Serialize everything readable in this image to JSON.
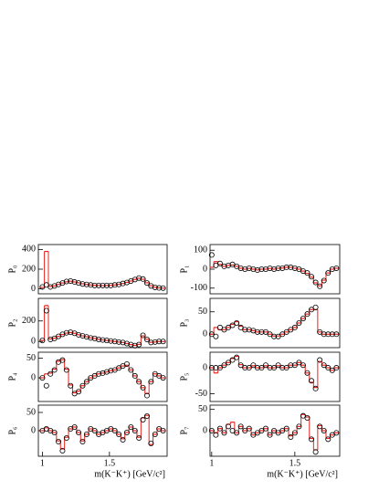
{
  "chart_data": [
    {
      "type": "step-fit",
      "ylabel": "P₀",
      "xlim": [
        0.97,
        1.93
      ],
      "ylim": [
        -50,
        450
      ],
      "yticks": [
        0,
        200,
        400
      ],
      "x": [
        1.0,
        1.03,
        1.06,
        1.09,
        1.12,
        1.15,
        1.18,
        1.21,
        1.24,
        1.27,
        1.3,
        1.33,
        1.36,
        1.39,
        1.42,
        1.45,
        1.48,
        1.51,
        1.54,
        1.57,
        1.6,
        1.63,
        1.66,
        1.69,
        1.72,
        1.75,
        1.78,
        1.81,
        1.84,
        1.87,
        1.9
      ],
      "series": [
        {
          "color": "#000000",
          "values": [
            20,
            40,
            20,
            30,
            45,
            60,
            75,
            80,
            70,
            60,
            50,
            45,
            40,
            35,
            35,
            35,
            35,
            35,
            40,
            45,
            55,
            65,
            80,
            95,
            110,
            100,
            60,
            30,
            15,
            10,
            8
          ]
        },
        {
          "color": "#e8231d",
          "values": [
            15,
            380,
            25,
            30,
            45,
            60,
            72,
            78,
            70,
            62,
            52,
            45,
            40,
            36,
            35,
            34,
            35,
            36,
            40,
            46,
            55,
            66,
            80,
            96,
            108,
            98,
            62,
            32,
            16,
            10,
            8
          ]
        }
      ]
    },
    {
      "type": "step-fit",
      "ylabel": "P₁",
      "xlim": [
        0.99,
        1.77
      ],
      "ylim": [
        -130,
        130
      ],
      "yticks": [
        -100,
        0,
        100
      ],
      "x": [
        1.0,
        1.025,
        1.05,
        1.075,
        1.1,
        1.125,
        1.15,
        1.175,
        1.2,
        1.225,
        1.25,
        1.275,
        1.3,
        1.325,
        1.35,
        1.375,
        1.4,
        1.425,
        1.45,
        1.475,
        1.5,
        1.525,
        1.55,
        1.575,
        1.6,
        1.625,
        1.65,
        1.675,
        1.7,
        1.725,
        1.75
      ],
      "series": [
        {
          "color": "#000000",
          "values": [
            75,
            20,
            30,
            15,
            20,
            25,
            15,
            5,
            0,
            5,
            0,
            -5,
            0,
            0,
            5,
            0,
            5,
            5,
            10,
            10,
            5,
            0,
            -10,
            -20,
            -40,
            -70,
            -90,
            -60,
            -20,
            0,
            5
          ]
        },
        {
          "color": "#e8231d",
          "values": [
            10,
            40,
            25,
            15,
            20,
            22,
            15,
            5,
            0,
            4,
            0,
            -4,
            0,
            0,
            4,
            0,
            5,
            6,
            10,
            10,
            5,
            0,
            -10,
            -22,
            -42,
            -72,
            -88,
            -58,
            -20,
            0,
            5
          ]
        }
      ]
    },
    {
      "type": "step-fit",
      "ylabel": "P₂",
      "xlim": [
        0.97,
        1.93
      ],
      "ylim": [
        -60,
        420
      ],
      "yticks": [
        0,
        200
      ],
      "x": [
        1.0,
        1.03,
        1.06,
        1.09,
        1.12,
        1.15,
        1.18,
        1.21,
        1.24,
        1.27,
        1.3,
        1.33,
        1.36,
        1.39,
        1.42,
        1.45,
        1.48,
        1.51,
        1.54,
        1.57,
        1.6,
        1.63,
        1.66,
        1.69,
        1.72,
        1.75,
        1.78,
        1.81,
        1.84,
        1.87,
        1.9
      ],
      "series": [
        {
          "color": "#000000",
          "values": [
            10,
            300,
            20,
            30,
            50,
            70,
            85,
            90,
            80,
            65,
            55,
            45,
            35,
            30,
            20,
            15,
            10,
            5,
            0,
            -5,
            -10,
            -20,
            -30,
            -40,
            -30,
            60,
            20,
            -10,
            -5,
            0,
            0
          ]
        },
        {
          "color": "#e8231d",
          "values": [
            10,
            350,
            25,
            32,
            50,
            68,
            82,
            88,
            80,
            66,
            55,
            46,
            36,
            30,
            21,
            15,
            10,
            5,
            0,
            -5,
            -10,
            -20,
            -30,
            -38,
            -28,
            55,
            22,
            -8,
            -5,
            0,
            0
          ]
        }
      ]
    },
    {
      "type": "step-fit",
      "ylabel": "P₃",
      "xlim": [
        0.99,
        1.77
      ],
      "ylim": [
        -30,
        80
      ],
      "yticks": [
        0,
        50
      ],
      "x": [
        1.0,
        1.025,
        1.05,
        1.075,
        1.1,
        1.125,
        1.15,
        1.175,
        1.2,
        1.225,
        1.25,
        1.275,
        1.3,
        1.325,
        1.35,
        1.375,
        1.4,
        1.425,
        1.45,
        1.475,
        1.5,
        1.525,
        1.55,
        1.575,
        1.6,
        1.625,
        1.65,
        1.675,
        1.7,
        1.725,
        1.75
      ],
      "series": [
        {
          "color": "#000000",
          "values": [
            0,
            -5,
            15,
            10,
            15,
            20,
            25,
            15,
            10,
            10,
            8,
            5,
            5,
            5,
            0,
            -5,
            -5,
            0,
            5,
            10,
            15,
            25,
            35,
            45,
            55,
            60,
            5,
            0,
            0,
            0,
            0
          ]
        },
        {
          "color": "#e8231d",
          "values": [
            0,
            15,
            10,
            10,
            15,
            22,
            28,
            18,
            10,
            10,
            8,
            5,
            5,
            5,
            0,
            -4,
            -4,
            0,
            5,
            10,
            15,
            25,
            35,
            45,
            55,
            55,
            5,
            0,
            0,
            0,
            0
          ]
        }
      ]
    },
    {
      "type": "step-fit",
      "ylabel": "P₄",
      "xlim": [
        0.97,
        1.93
      ],
      "ylim": [
        -60,
        65
      ],
      "yticks": [
        0,
        50
      ],
      "x": [
        1.0,
        1.03,
        1.06,
        1.09,
        1.12,
        1.15,
        1.18,
        1.21,
        1.24,
        1.27,
        1.3,
        1.33,
        1.36,
        1.39,
        1.42,
        1.45,
        1.48,
        1.51,
        1.54,
        1.57,
        1.6,
        1.63,
        1.66,
        1.69,
        1.72,
        1.75,
        1.78,
        1.81,
        1.84,
        1.87,
        1.9
      ],
      "series": [
        {
          "color": "#000000",
          "values": [
            0,
            -20,
            10,
            20,
            40,
            45,
            20,
            -20,
            -40,
            -35,
            -20,
            -10,
            0,
            5,
            10,
            12,
            15,
            18,
            20,
            25,
            30,
            35,
            20,
            5,
            -10,
            -25,
            -45,
            -10,
            10,
            5,
            0
          ]
        },
        {
          "color": "#e8231d",
          "values": [
            0,
            10,
            12,
            22,
            42,
            46,
            22,
            -18,
            -38,
            -34,
            -20,
            -10,
            0,
            5,
            10,
            12,
            15,
            18,
            20,
            25,
            30,
            32,
            20,
            5,
            -10,
            -25,
            -40,
            -10,
            10,
            5,
            0
          ]
        }
      ]
    },
    {
      "type": "step-fit",
      "ylabel": "P₅",
      "xlim": [
        0.99,
        1.77
      ],
      "ylim": [
        -65,
        30
      ],
      "yticks": [
        -50,
        0
      ],
      "x": [
        1.0,
        1.025,
        1.05,
        1.075,
        1.1,
        1.125,
        1.15,
        1.175,
        1.2,
        1.225,
        1.25,
        1.275,
        1.3,
        1.325,
        1.35,
        1.375,
        1.4,
        1.425,
        1.45,
        1.475,
        1.5,
        1.525,
        1.55,
        1.575,
        1.6,
        1.625,
        1.65,
        1.675,
        1.7,
        1.725,
        1.75
      ],
      "series": [
        {
          "color": "#000000",
          "values": [
            0,
            0,
            0,
            5,
            10,
            15,
            20,
            5,
            0,
            0,
            5,
            0,
            0,
            5,
            0,
            0,
            5,
            0,
            0,
            5,
            5,
            10,
            5,
            -10,
            -25,
            -40,
            15,
            5,
            0,
            -5,
            0
          ]
        },
        {
          "color": "#e8231d",
          "values": [
            0,
            -10,
            0,
            5,
            10,
            18,
            22,
            6,
            0,
            0,
            4,
            0,
            0,
            4,
            0,
            0,
            4,
            0,
            0,
            5,
            5,
            10,
            5,
            -10,
            -28,
            -38,
            12,
            5,
            0,
            -5,
            0
          ]
        }
      ]
    },
    {
      "type": "step-fit",
      "ylabel": "P₆",
      "xlim": [
        0.97,
        1.93
      ],
      "ylim": [
        -70,
        70
      ],
      "yticks": [
        0,
        50
      ],
      "x": [
        1.0,
        1.03,
        1.06,
        1.09,
        1.12,
        1.15,
        1.18,
        1.21,
        1.24,
        1.27,
        1.3,
        1.33,
        1.36,
        1.39,
        1.42,
        1.45,
        1.48,
        1.51,
        1.54,
        1.57,
        1.6,
        1.63,
        1.66,
        1.69,
        1.72,
        1.75,
        1.78,
        1.81,
        1.84,
        1.87,
        1.9
      ],
      "series": [
        {
          "color": "#000000",
          "values": [
            0,
            5,
            0,
            -5,
            -30,
            -55,
            -20,
            5,
            10,
            -5,
            -30,
            -10,
            5,
            0,
            -10,
            -5,
            0,
            5,
            0,
            -10,
            -25,
            -5,
            10,
            0,
            -20,
            30,
            40,
            -35,
            -10,
            5,
            0
          ]
        },
        {
          "color": "#e8231d",
          "values": [
            0,
            8,
            0,
            -5,
            -28,
            -50,
            -18,
            5,
            10,
            -5,
            -28,
            -10,
            5,
            0,
            -10,
            -5,
            0,
            5,
            0,
            -10,
            -22,
            -5,
            10,
            0,
            -18,
            35,
            42,
            -38,
            -10,
            5,
            0
          ]
        }
      ]
    },
    {
      "type": "step-fit",
      "ylabel": "P₇",
      "xlim": [
        0.99,
        1.77
      ],
      "ylim": [
        -60,
        60
      ],
      "yticks": [
        0,
        50
      ],
      "x": [
        1.0,
        1.025,
        1.05,
        1.075,
        1.1,
        1.125,
        1.15,
        1.175,
        1.2,
        1.225,
        1.25,
        1.275,
        1.3,
        1.325,
        1.35,
        1.375,
        1.4,
        1.425,
        1.45,
        1.475,
        1.5,
        1.525,
        1.55,
        1.575,
        1.6,
        1.625,
        1.65,
        1.675,
        1.7,
        1.725,
        1.75
      ],
      "series": [
        {
          "color": "#000000",
          "values": [
            0,
            -10,
            5,
            -5,
            10,
            0,
            -5,
            10,
            0,
            5,
            -10,
            -5,
            0,
            5,
            -10,
            0,
            -5,
            0,
            5,
            -15,
            -5,
            10,
            35,
            30,
            -20,
            -50,
            10,
            0,
            -20,
            -10,
            -5
          ]
        },
        {
          "color": "#e8231d",
          "values": [
            0,
            -5,
            5,
            -5,
            15,
            20,
            -5,
            10,
            0,
            5,
            -10,
            -5,
            0,
            5,
            -10,
            0,
            -5,
            0,
            5,
            -12,
            -5,
            10,
            38,
            32,
            -18,
            -45,
            12,
            0,
            -18,
            -10,
            -5
          ]
        }
      ]
    },
    {
      "type": "axis",
      "xlim": [
        0.97,
        1.93
      ],
      "xticks": [
        1,
        1.5
      ],
      "xlabel": "m(K⁻K⁺) [GeV/c²]"
    },
    {
      "type": "axis",
      "xlim": [
        0.99,
        1.77
      ],
      "xticks": [
        1,
        1.5
      ],
      "xlabel": "m(K⁻K⁺) [GeV/c²]"
    }
  ]
}
